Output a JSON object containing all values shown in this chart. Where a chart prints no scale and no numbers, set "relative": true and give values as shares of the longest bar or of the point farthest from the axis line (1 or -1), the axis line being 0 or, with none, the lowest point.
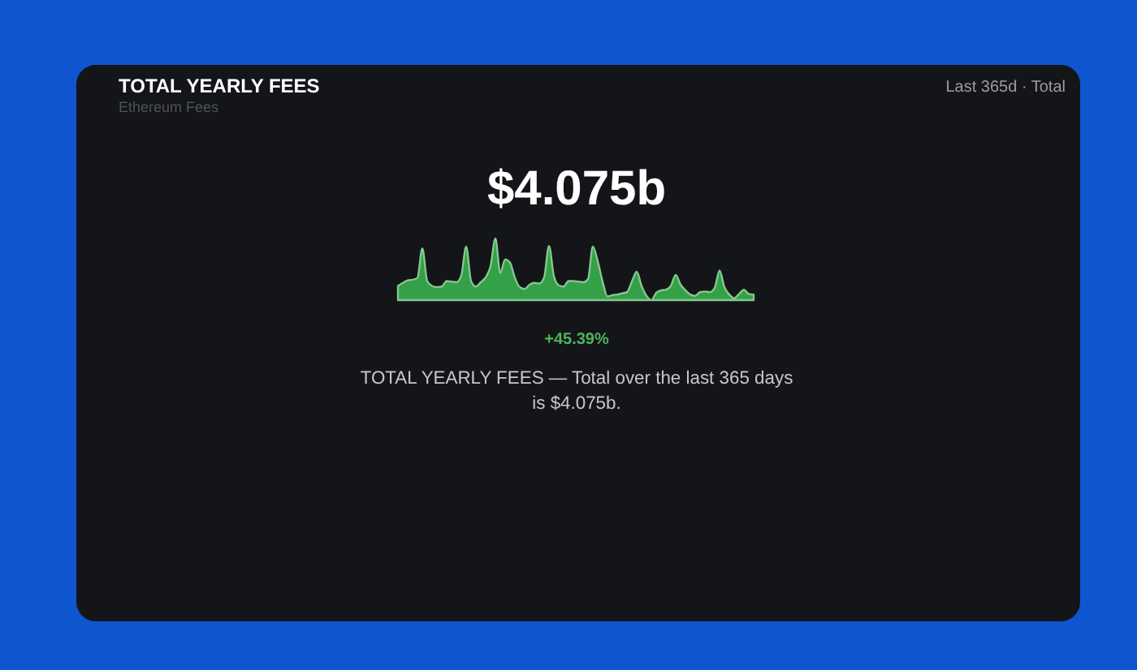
{
  "chart_data": {
    "type": "area",
    "title": "TOTAL YEARLY FEES",
    "subtitle": "Ethereum Fees",
    "annotations": [
      "Last 365d · Total",
      "$4.075b",
      "+45.39%",
      "TOTAL YEARLY FEES — Total over the last 365 days\nis $4.075b."
    ],
    "relative": true,
    "color": "#34a047",
    "categories": [
      null,
      null,
      null,
      null,
      null,
      null,
      null,
      null,
      null,
      null,
      null,
      null,
      null,
      null,
      null,
      null,
      null,
      null,
      null,
      null,
      null,
      null,
      null,
      null,
      null,
      null,
      null,
      null,
      null,
      null,
      null,
      null,
      null,
      null,
      null,
      null,
      null,
      null,
      null,
      null,
      null,
      null,
      null,
      null,
      null,
      null,
      null,
      null,
      null,
      null,
      null,
      null,
      null,
      null,
      null,
      null,
      null,
      null,
      null,
      null,
      null,
      null,
      null,
      null,
      null,
      null,
      null,
      null,
      null,
      null,
      null,
      null,
      null,
      null
    ],
    "values": [
      0.23,
      0.28,
      0.32,
      0.33,
      0.36,
      0.84,
      0.31,
      0.23,
      0.21,
      0.22,
      0.31,
      0.3,
      0.29,
      0.4,
      0.87,
      0.31,
      0.22,
      0.29,
      0.37,
      0.55,
      1.0,
      0.44,
      0.66,
      0.61,
      0.36,
      0.21,
      0.18,
      0.25,
      0.28,
      0.27,
      0.37,
      0.88,
      0.39,
      0.24,
      0.22,
      0.31,
      0.31,
      0.3,
      0.29,
      0.34,
      0.87,
      0.63,
      0.3,
      0.06,
      0.08,
      0.09,
      0.11,
      0.13,
      0.3,
      0.46,
      0.23,
      0.07,
      0,
      0.12,
      0.16,
      0.17,
      0.23,
      0.41,
      0.25,
      0.16,
      0.09,
      0.07,
      0.13,
      0.14,
      0.13,
      0.2,
      0.48,
      0.21,
      0.09,
      0.03,
      0.1,
      0.17,
      0.1,
      0.09
    ]
  }
}
